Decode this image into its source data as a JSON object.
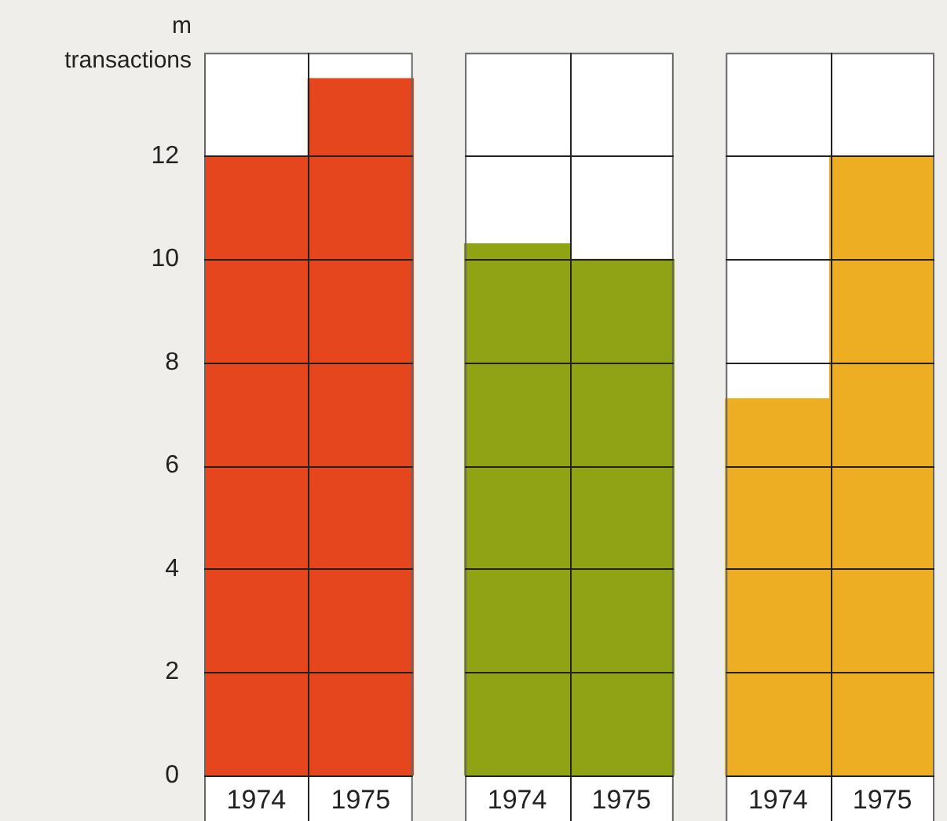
{
  "chart_data": {
    "type": "bar",
    "ylabel": "m\ntransactions",
    "categories": [
      "1974",
      "1975",
      "1974",
      "1975",
      "1974",
      "1975"
    ],
    "values": [
      12,
      13.5,
      10.3,
      10.0,
      7.3,
      12
    ],
    "colors": [
      "#e5461d",
      "#e5461d",
      "#8fa314",
      "#8fa314",
      "#eeae24",
      "#eeae24"
    ],
    "ylim": [
      0,
      14
    ],
    "yticks": [
      0,
      2,
      4,
      6,
      8,
      10,
      12
    ],
    "grid": "y",
    "legend": false
  }
}
